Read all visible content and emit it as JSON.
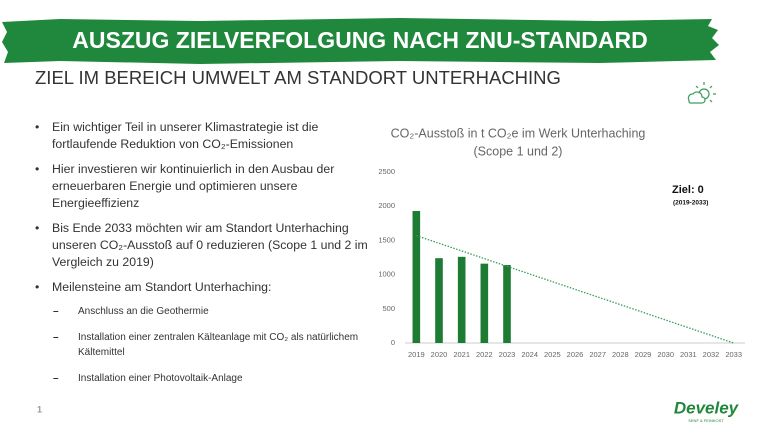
{
  "header": {
    "title": "AUSZUG ZIELVERFOLGUNG NACH ZNU-STANDARD",
    "subtitle": "ZIEL IM BEREICH UMWELT AM STANDORT UNTERHACHING"
  },
  "bullets": [
    "Ein wichtiger Teil in unserer Klimastrategie ist die fortlaufende Reduktion von CO₂-Emissionen",
    "Hier investieren wir kontinuierlich in den Ausbau der erneuerbaren Energie und optimieren unsere Energieeffizienz",
    "Bis Ende 2033 möchten wir am Standort Unterhaching unseren CO₂-Ausstoß auf 0 reduzieren (Scope 1 und 2 im Vergleich zu 2019)",
    "Meilensteine am Standort Unterhaching:"
  ],
  "sub_bullets": [
    "Anschluss an die Geothermie",
    "Installation einer zentralen Kälteanlage mit CO₂ als natürlichem Kältemittel",
    "Installation einer Photovoltaik-Anlage"
  ],
  "page_number": "1",
  "logo": {
    "name": "Develey",
    "tagline": "SENF & FEINKOST"
  },
  "chart_data": {
    "type": "bar",
    "title": "CO₂-Ausstoß in t CO₂e im Werk Unterhaching",
    "subtitle": "(Scope 1 und 2)",
    "categories": [
      "2019",
      "2020",
      "2021",
      "2022",
      "2023",
      "2024",
      "2025",
      "2026",
      "2027",
      "2028",
      "2029",
      "2030",
      "2031",
      "2032",
      "2033"
    ],
    "values": [
      1930,
      1240,
      1260,
      1160,
      1140,
      null,
      null,
      null,
      null,
      null,
      null,
      null,
      null,
      null,
      null
    ],
    "color": "#1e7b34",
    "trend": [
      1570,
      1458,
      1346,
      1234,
      1121,
      1009,
      897,
      785,
      673,
      561,
      449,
      336,
      224,
      112,
      0
    ],
    "trend_color": "#3a9d5a",
    "ylim": [
      0,
      2500
    ],
    "yticks": [
      0,
      500,
      1000,
      1500,
      2000,
      2500
    ],
    "grid": false,
    "annotations": [
      "Ziel: 0",
      "(2019-2033)"
    ]
  }
}
